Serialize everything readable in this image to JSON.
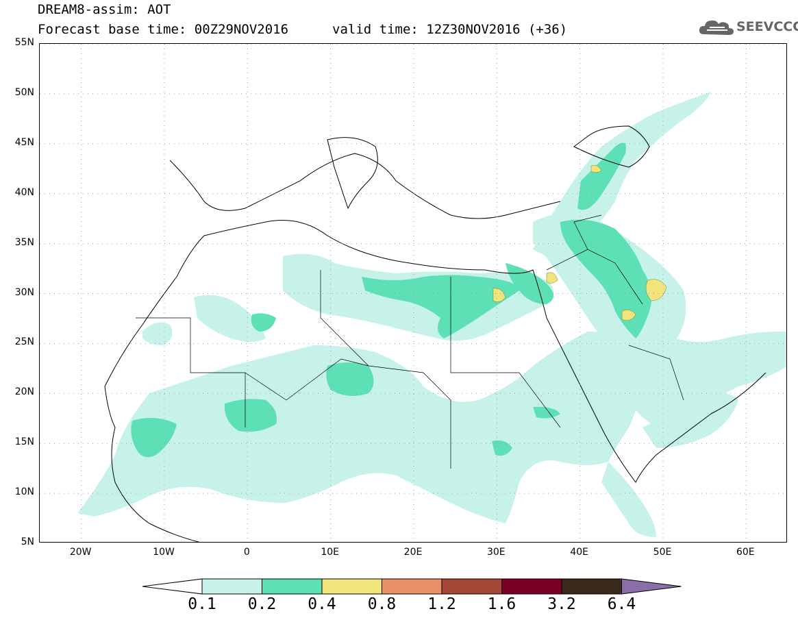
{
  "header": {
    "line1": "DREAM8-assim: AOT",
    "line2_left": "Forecast base time: 00Z29NOV2016",
    "line2_right": "valid time: 12Z30NOV2016 (+36)"
  },
  "logo": {
    "text": "SEEVCCC",
    "icon": "cloud-icon"
  },
  "map": {
    "lon_range": [
      -25,
      65
    ],
    "lat_range": [
      5,
      55
    ],
    "lat_labels": [
      "55N",
      "50N",
      "45N",
      "40N",
      "35N",
      "30N",
      "25N",
      "20N",
      "15N",
      "10N",
      "5N"
    ],
    "lat_values": [
      55,
      50,
      45,
      40,
      35,
      30,
      25,
      20,
      15,
      10,
      5
    ],
    "lon_labels": [
      "20W",
      "10W",
      "0",
      "10E",
      "20E",
      "30E",
      "40E",
      "50E",
      "60E"
    ],
    "lon_values": [
      -20,
      -10,
      0,
      10,
      20,
      30,
      40,
      50,
      60
    ],
    "grid": "dotted"
  },
  "colorbar": {
    "labels": [
      "0.1",
      "0.2",
      "0.4",
      "0.8",
      "1.2",
      "1.6",
      "3.2",
      "6.4"
    ],
    "colors": [
      "#c6f2ea",
      "#5ee0b6",
      "#f0e47a",
      "#e9906a",
      "#a54838",
      "#7a0026",
      "#3a2a1c",
      "#8a6ea8"
    ],
    "under_color": "#ffffff"
  },
  "colors": {
    "level1": "#c6f2ea",
    "level2": "#5ee0b6",
    "level3": "#f0e47a"
  }
}
